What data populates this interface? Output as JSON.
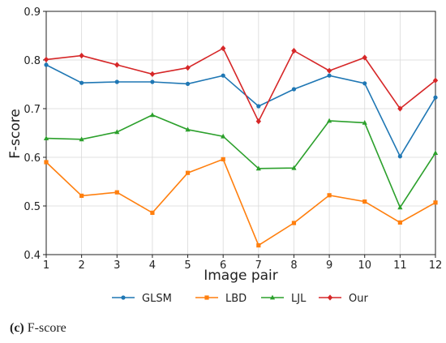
{
  "chart_data": {
    "type": "line",
    "xlabel": "Image pair",
    "ylabel": "F-score",
    "x": [
      1,
      2,
      3,
      4,
      5,
      6,
      7,
      8,
      9,
      10,
      11,
      12
    ],
    "xlim": [
      1,
      12
    ],
    "ylim": [
      0.4,
      0.9
    ],
    "yticks": [
      "0.4",
      "0.5",
      "0.6",
      "0.7",
      "0.8",
      "0.9"
    ],
    "xticks": [
      "1",
      "2",
      "3",
      "4",
      "5",
      "6",
      "7",
      "8",
      "9",
      "10",
      "11",
      "12"
    ],
    "grid": true,
    "legend_position": "bottom",
    "series": [
      {
        "name": "GLSM",
        "color": "#1f77b4",
        "marker": "circle",
        "values": [
          0.79,
          0.753,
          0.755,
          0.755,
          0.751,
          0.768,
          0.705,
          0.74,
          0.768,
          0.752,
          0.602,
          0.723
        ]
      },
      {
        "name": "LBD",
        "color": "#ff7f0e",
        "marker": "square",
        "values": [
          0.59,
          0.521,
          0.528,
          0.486,
          0.568,
          0.596,
          0.419,
          0.465,
          0.522,
          0.509,
          0.466,
          0.507
        ]
      },
      {
        "name": "LJL",
        "color": "#2ca02c",
        "marker": "triangle",
        "values": [
          0.639,
          0.637,
          0.652,
          0.687,
          0.657,
          0.643,
          0.577,
          0.578,
          0.675,
          0.671,
          0.497,
          0.609
        ]
      },
      {
        "name": "Our",
        "color": "#d62728",
        "marker": "diamond",
        "values": [
          0.801,
          0.809,
          0.79,
          0.771,
          0.784,
          0.824,
          0.674,
          0.819,
          0.778,
          0.805,
          0.7,
          0.758
        ]
      }
    ]
  },
  "caption": {
    "label": "(c)",
    "text": " F-score"
  }
}
